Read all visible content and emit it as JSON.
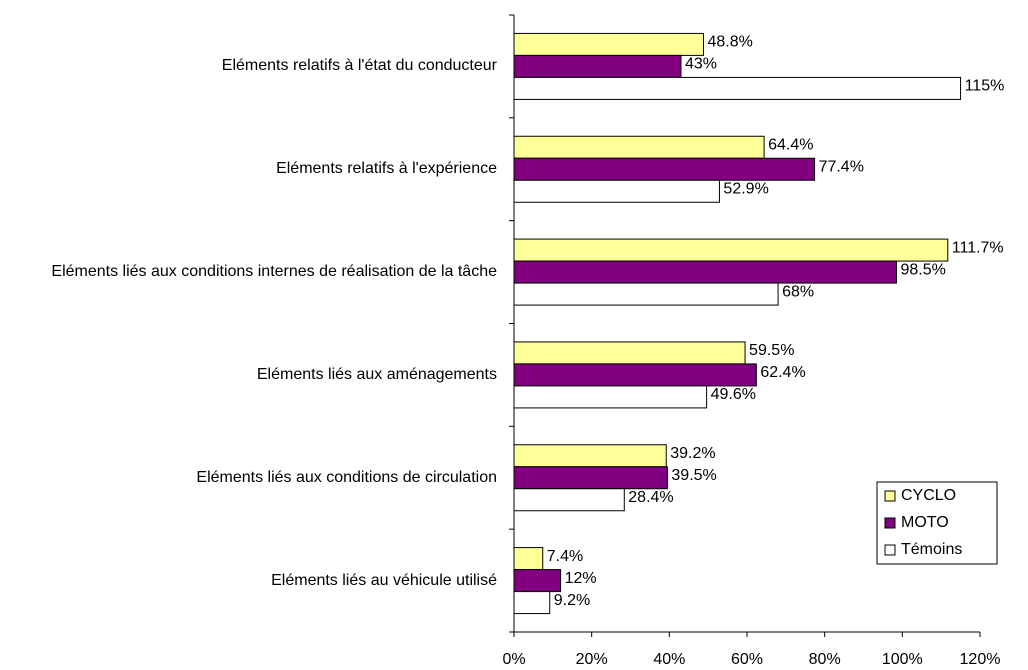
{
  "chart_data": {
    "type": "hbar",
    "categories": [
      "Eléments relatifs à l'état du conducteur",
      "Eléments relatifs à l'expérience",
      "Eléments liés aux conditions internes de réalisation de la tâche",
      "Eléments liés aux aménagements",
      "Eléments liés aux conditions de circulation",
      "Eléments liés au véhicule utilisé"
    ],
    "series": [
      {
        "name": "CYCLO",
        "color": "#ffff99",
        "values": [
          48.8,
          64.4,
          111.7,
          59.5,
          39.2,
          7.4
        ],
        "value_labels": [
          "48.8%",
          "64.4%",
          "111.7%",
          "59.5%",
          "39.2%",
          "7.4%"
        ]
      },
      {
        "name": "MOTO",
        "color": "#800080",
        "values": [
          43,
          77.4,
          98.5,
          62.4,
          39.5,
          12
        ],
        "value_labels": [
          "43%",
          "77.4%",
          "98.5%",
          "62.4%",
          "39.5%",
          "12%"
        ]
      },
      {
        "name": "Témoins",
        "color": "#ffffff",
        "values": [
          115,
          52.9,
          68,
          49.6,
          28.4,
          9.2
        ],
        "value_labels": [
          "115%",
          "52.9%",
          "68%",
          "49.6%",
          "28.4%",
          "9.2%"
        ]
      }
    ],
    "xlim": [
      0,
      120
    ],
    "xticks": [
      {
        "value": 0,
        "label": "0%"
      },
      {
        "value": 20,
        "label": "20%"
      },
      {
        "value": 40,
        "label": "40%"
      },
      {
        "value": 60,
        "label": "60%"
      },
      {
        "value": 80,
        "label": "80%"
      },
      {
        "value": 100,
        "label": "100%"
      },
      {
        "value": 120,
        "label": "120%"
      }
    ],
    "legend": "right"
  }
}
